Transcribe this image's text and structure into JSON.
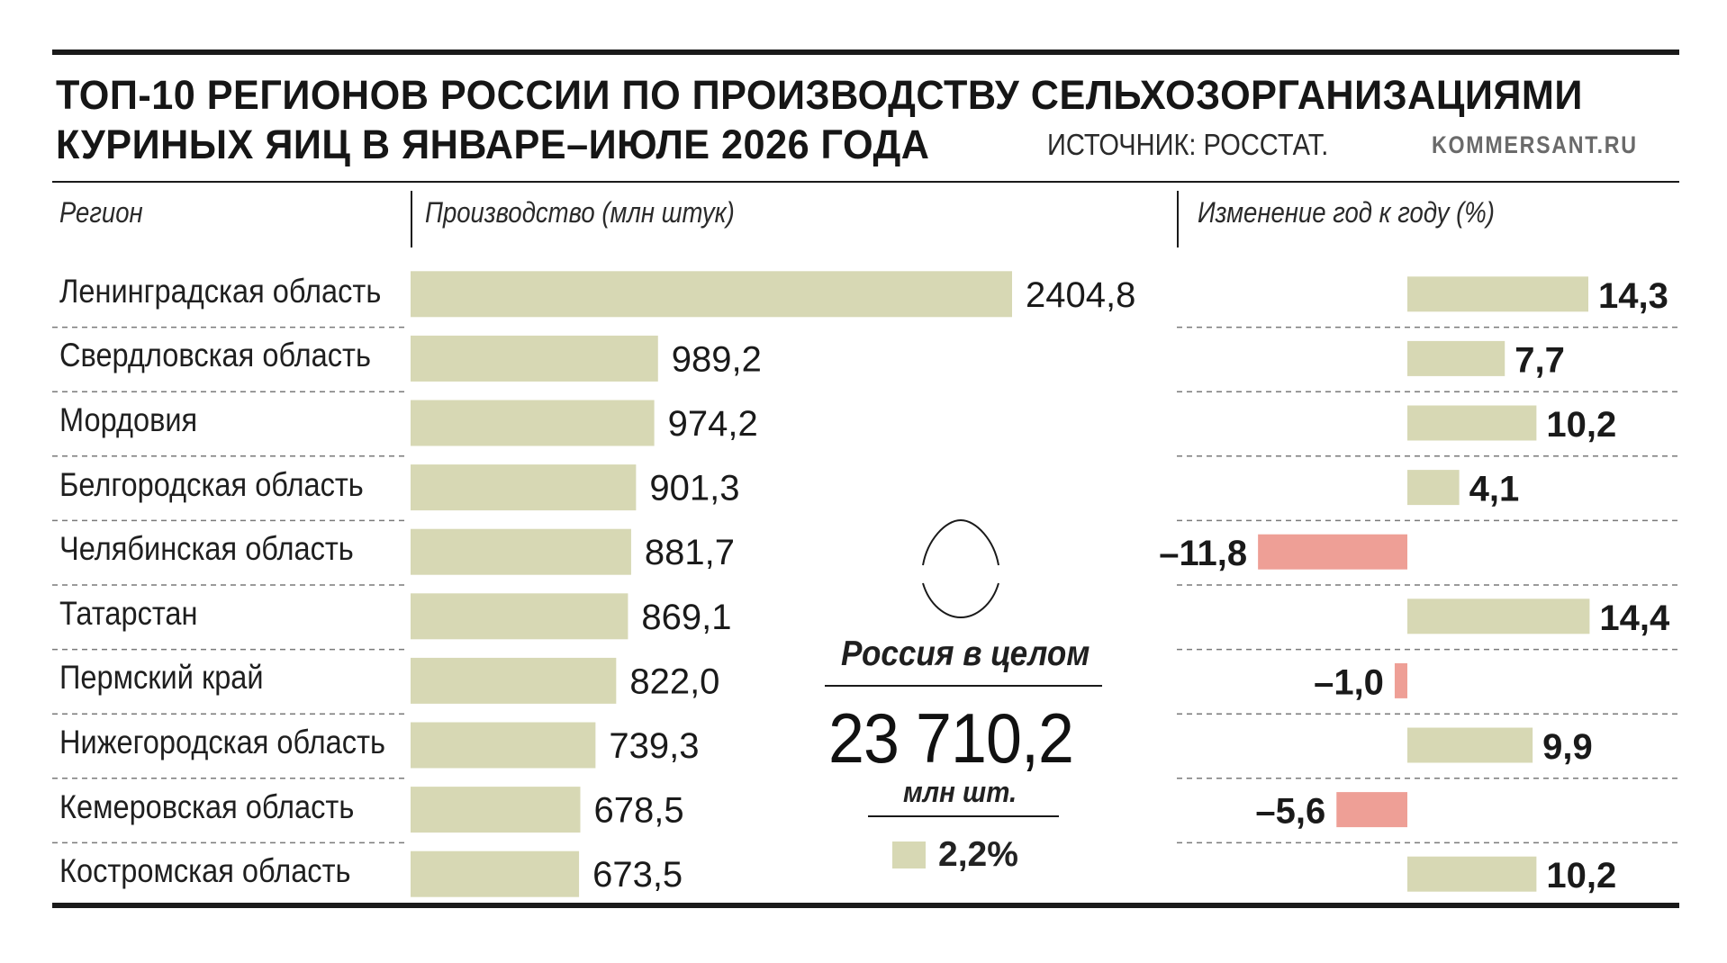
{
  "header": {
    "title_line1": "ТОП-10 РЕГИОНОВ РОССИИ ПО ПРОИЗВОДСТВУ СЕЛЬХОЗОРГАНИЗАЦИЯМИ",
    "title_line2": "КУРИНЫХ ЯИЦ В ЯНВАРЕ–ИЮЛЕ 2026 ГОДА",
    "source": "ИСТОЧНИК: РОССТАТ.",
    "brand": "KOMMERSANT.RU"
  },
  "columns": {
    "region": "Регион",
    "production": "Производство (млн штук)",
    "change": "Изменение год к году (%)"
  },
  "summary": {
    "label": "Россия в целом",
    "value": "23 710,2",
    "unit": "млн шт.",
    "change": "2,2%",
    "egg_icon": "egg-icon"
  },
  "colors": {
    "bar": "#d7d8b4",
    "negative": "#ee9f96",
    "rule": "#1a1a1a",
    "dash": "#7a7a7a"
  },
  "chart_data": [
    {
      "type": "bar",
      "orientation": "horizontal",
      "xlabel": "Производство (млн штук)",
      "categories": [
        "Ленинградская область",
        "Свердловская область",
        "Мордовия",
        "Белгородская область",
        "Челябинская область",
        "Татарстан",
        "Пермский край",
        "Нижегородская область",
        "Кемеровская область",
        "Костромская область"
      ],
      "values": [
        2404.8,
        989.2,
        974.2,
        901.3,
        881.7,
        869.1,
        822.0,
        739.3,
        678.5,
        673.5
      ],
      "labels": [
        "2404,8",
        "989,2",
        "974,2",
        "901,3",
        "881,7",
        "869,1",
        "822,0",
        "739,3",
        "678,5",
        "673,5"
      ]
    },
    {
      "type": "bar",
      "orientation": "horizontal",
      "xlabel": "Изменение год к году (%)",
      "categories": [
        "Ленинградская область",
        "Свердловская область",
        "Мордовия",
        "Белгородская область",
        "Челябинская область",
        "Татарстан",
        "Пермский край",
        "Нижегородская область",
        "Кемеровская область",
        "Костромская область"
      ],
      "values": [
        14.3,
        7.7,
        10.2,
        4.1,
        -11.8,
        14.4,
        -1.0,
        9.9,
        -5.6,
        10.2
      ],
      "labels": [
        "14,3",
        "7,7",
        "10,2",
        "4,1",
        "–11,8",
        "14,4",
        "–1,0",
        "9,9",
        "–5,6",
        "10,2"
      ]
    }
  ]
}
